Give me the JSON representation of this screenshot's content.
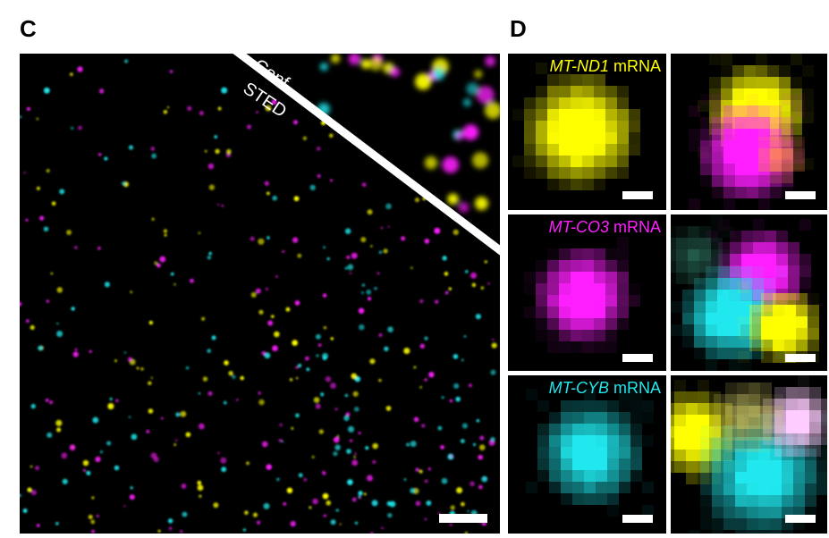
{
  "panels": {
    "c": {
      "letter": "C",
      "overlay_top": "Conf",
      "overlay_bottom": "STED"
    },
    "d": {
      "letter": "D",
      "rows": [
        {
          "gene": "MT-ND1",
          "suffix": "mRNA",
          "color": "#ffff00"
        },
        {
          "gene": "MT-CO3",
          "suffix": "mRNA",
          "color": "#ff1eff"
        },
        {
          "gene": "MT-CYB",
          "suffix": "mRNA",
          "color": "#20e8ee"
        }
      ]
    }
  },
  "colors": {
    "yellow": "#ffff00",
    "magenta": "#ff1eff",
    "cyan": "#20e8ee",
    "divider": "#ffffff"
  }
}
